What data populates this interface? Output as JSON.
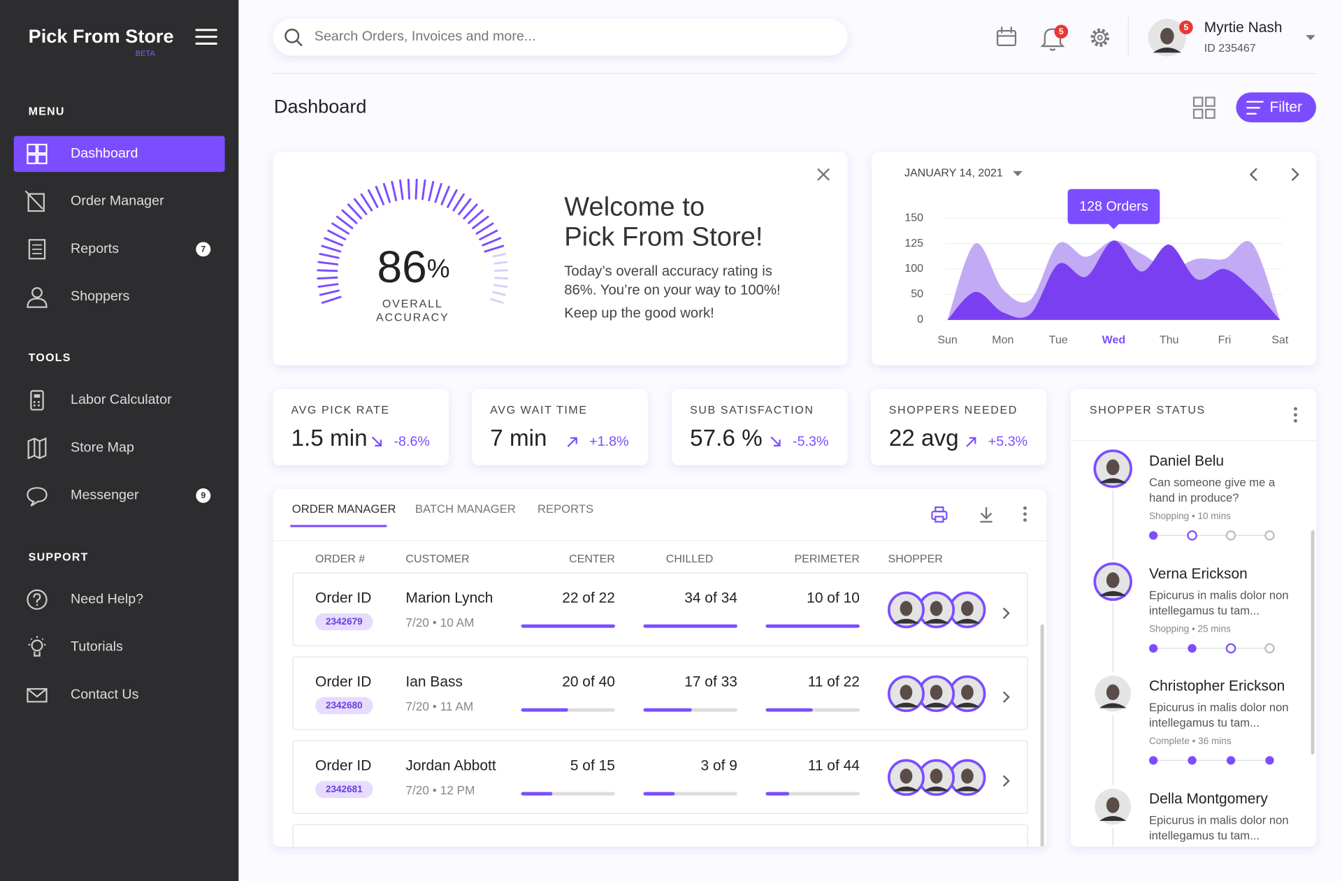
{
  "sidebar": {
    "brand": "Pick From Store",
    "badge": "BETA",
    "sections": [
      {
        "title": "MENU",
        "items": [
          {
            "label": "Dashboard"
          },
          {
            "label": "Order Manager"
          },
          {
            "label": "Reports",
            "count": 7
          },
          {
            "label": "Shoppers"
          }
        ]
      },
      {
        "title": "TOOLS",
        "items": [
          {
            "label": "Labor Calculator"
          },
          {
            "label": "Store Map"
          },
          {
            "label": "Messenger",
            "count": 9
          }
        ]
      },
      {
        "title": "SUPPORT",
        "items": [
          {
            "label": "Need Help?"
          },
          {
            "label": "Tutorials"
          },
          {
            "label": "Contact Us"
          }
        ]
      }
    ]
  },
  "header": {
    "search_placeholder": "Search Orders, Invoices and more...",
    "notifications": 5,
    "user": {
      "name": "Myrtie Nash",
      "id": "ID 235467",
      "notifications": 5
    }
  },
  "page_title": "Dashboard",
  "filter": "Filter",
  "welcome": {
    "accuracy": 86,
    "unit": "%",
    "caption_lines": [
      "OVERALL",
      "ACCURACY"
    ],
    "title_lines": [
      "Welcome to",
      "Pick From Store!"
    ],
    "body_lines": [
      "Today’s overall accuracy rating is",
      "86%. You’re on your way to 100%!"
    ],
    "footer": "Keep up the good work!"
  },
  "chart_data": {
    "type": "area",
    "date": "JANUARY 14, 2021",
    "annotation": "128 Orders",
    "selected": 3,
    "categories": [
      "Sun",
      "Mon",
      "Tue",
      "Wed",
      "Thu",
      "Fri",
      "Sat"
    ],
    "x": [
      0,
      0.5,
      1,
      1.5,
      2,
      2.5,
      3,
      3.5,
      4,
      4.5,
      5,
      5.5,
      6
    ],
    "xlim": [
      0,
      6
    ],
    "ylim": [
      0,
      150
    ],
    "yticks": [
      0,
      50,
      100,
      125,
      150
    ],
    "series": [
      {
        "color": "#b79cf2",
        "values": [
          0,
          125,
          60,
          40,
          125,
          112,
          128,
          115,
          100,
          110,
          110,
          125,
          0
        ]
      },
      {
        "color": "#7b3ff2",
        "values": [
          0,
          55,
          15,
          12,
          105,
          85,
          128,
          95,
          124,
          80,
          100,
          60,
          0
        ]
      }
    ]
  },
  "kpis": [
    {
      "label": "AVG PICK RATE",
      "value": "1.5 min",
      "change": "-8.6%",
      "trend": "down"
    },
    {
      "label": "AVG WAIT TIME",
      "value": "7 min",
      "change": "+1.8%",
      "trend": "up"
    },
    {
      "label": "SUB SATISFACTION",
      "value": "57.6 %",
      "change": "-5.3%",
      "trend": "down"
    },
    {
      "label": "SHOPPERS NEEDED",
      "value": "22 avg",
      "change": "+5.3%",
      "trend": "up"
    }
  ],
  "orders": {
    "tabs": [
      "ORDER MANAGER",
      "BATCH MANAGER",
      "REPORTS"
    ],
    "columns": [
      "ORDER #",
      "CUSTOMER",
      "CENTER",
      "CHILLED",
      "PERIMETER",
      "SHOPPER"
    ],
    "rows": [
      {
        "label": "Order ID",
        "id": "2342679",
        "customer": "Marion Lynch",
        "time": "7/20 • 10 AM",
        "center": {
          "label": "22 of 22",
          "done": 22,
          "total": 22
        },
        "chilled": {
          "label": "34 of 34",
          "done": 34,
          "total": 34
        },
        "perimeter": {
          "label": "10 of 10",
          "done": 10,
          "total": 10
        }
      },
      {
        "label": "Order ID",
        "id": "2342680",
        "customer": "Ian Bass",
        "time": "7/20 • 11 AM",
        "center": {
          "label": "20 of 40",
          "done": 20,
          "total": 40
        },
        "chilled": {
          "label": "17 of 33",
          "done": 17,
          "total": 33
        },
        "perimeter": {
          "label": "11 of 22",
          "done": 11,
          "total": 22
        }
      },
      {
        "label": "Order ID",
        "id": "2342681",
        "customer": "Jordan Abbott",
        "time": "7/20 • 12 PM",
        "center": {
          "label": "5 of 15",
          "done": 5,
          "total": 15
        },
        "chilled": {
          "label": "3 of 9",
          "done": 3,
          "total": 9
        },
        "perimeter": {
          "label": "11 of 44",
          "done": 11,
          "total": 44
        }
      }
    ]
  },
  "shopper_status": {
    "title": "SHOPPER STATUS",
    "shoppers": [
      {
        "name": "Daniel Belu",
        "message_lines": [
          "Can someone give me a",
          "hand in produce?"
        ],
        "meta": "Shopping • 10 mins",
        "steps": 4,
        "steps_done": 1,
        "highlighted": true
      },
      {
        "name": "Verna Erickson",
        "message_lines": [
          "Epicurus in malis dolor non",
          "intellegamus tu tam..."
        ],
        "meta": "Shopping • 25 mins",
        "steps": 4,
        "steps_done": 2,
        "highlighted": true
      },
      {
        "name": "Christopher Erickson",
        "message_lines": [
          "Epicurus in malis dolor non",
          "intellegamus tu tam..."
        ],
        "meta": "Complete • 36 mins",
        "steps": 4,
        "steps_done": 4,
        "highlighted": false
      },
      {
        "name": "Della Montgomery",
        "message_lines": [
          "Epicurus in malis dolor non",
          "intellegamus tu tam..."
        ],
        "highlighted": false
      }
    ]
  }
}
